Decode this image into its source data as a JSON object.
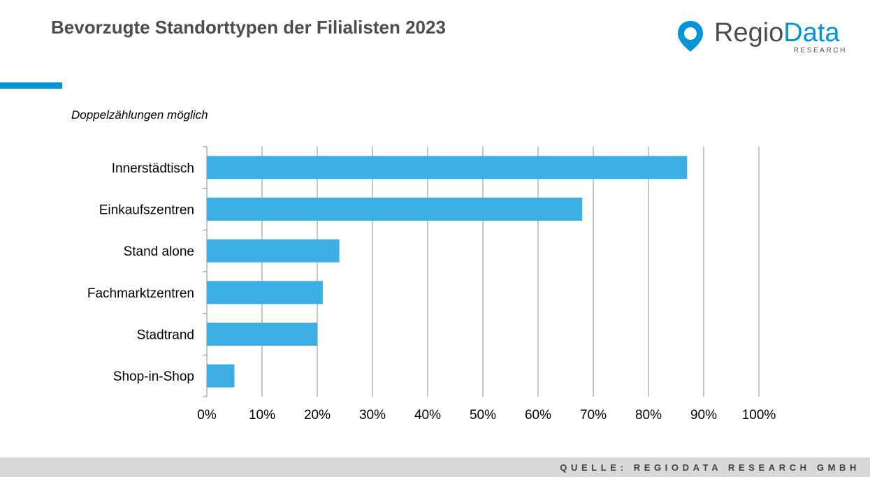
{
  "header": {
    "title": "Bevorzugte Standorttypen der Filialisten 2023",
    "accent_color": "#0095d9"
  },
  "logo": {
    "brand_part1": "Regio",
    "brand_part2": "Data",
    "tagline": "RESEARCH",
    "icon": "location-pin-icon",
    "color": "#0095d9"
  },
  "note": "Doppelzählungen möglich",
  "footer": {
    "source": "QUELLE: REGIODATA RESEARCH GMBH",
    "background": "#d9d9d9"
  },
  "chart_data": {
    "type": "bar",
    "orientation": "horizontal",
    "categories": [
      "Innerstädtisch",
      "Einkaufszentren",
      "Stand alone",
      "Fachmarktzentren",
      "Stadtrand",
      "Shop-in-Shop"
    ],
    "values": [
      87,
      68,
      24,
      21,
      20,
      5
    ],
    "unit": "%",
    "xlim": [
      0,
      100
    ],
    "xticks": [
      "0%",
      "10%",
      "20%",
      "30%",
      "40%",
      "50%",
      "60%",
      "70%",
      "80%",
      "90%",
      "100%"
    ],
    "grid": true,
    "legend": "none",
    "bar_color": "#3caee3"
  }
}
